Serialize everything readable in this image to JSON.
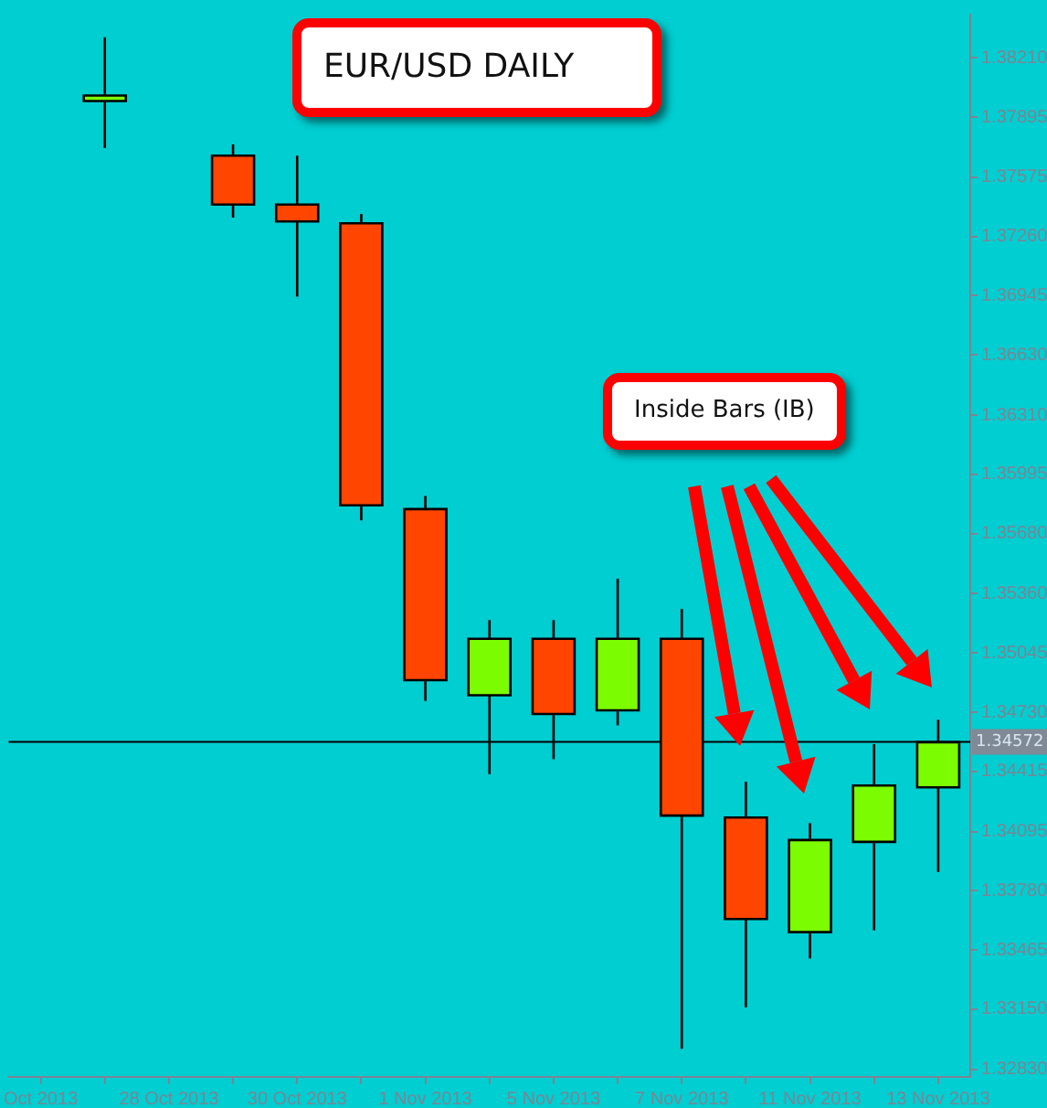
{
  "chart_data": {
    "type": "candlestick",
    "title": "EUR/USD DAILY",
    "annotations": [
      "Inside Bars (IB)"
    ],
    "categories": [
      "Oct 2013",
      null,
      "28 Oct 2013",
      null,
      "30 Oct 2013",
      null,
      "1 Nov 2013",
      null,
      "5 Nov 2013",
      null,
      "7 Nov 2013",
      null,
      "11 Nov 2013",
      null,
      "13 Nov 2013"
    ],
    "ohlc": [
      null,
      [
        1.38,
        1.3832,
        1.3773,
        1.3801
      ],
      null,
      [
        1.3769,
        1.3775,
        1.3736,
        1.3743
      ],
      [
        1.3743,
        1.3769,
        1.3694,
        1.3734
      ],
      [
        1.3733,
        1.3738,
        1.3575,
        1.3583
      ],
      [
        1.3581,
        1.3588,
        1.3479,
        1.349
      ],
      [
        1.3482,
        1.3522,
        1.344,
        1.3512
      ],
      [
        1.3512,
        1.3522,
        1.3448,
        1.3472
      ],
      [
        1.3474,
        1.3544,
        1.3466,
        1.3512
      ],
      [
        1.3512,
        1.3528,
        1.3294,
        1.3418
      ],
      [
        1.3417,
        1.3436,
        1.3316,
        1.3363
      ],
      [
        1.3356,
        1.3414,
        1.3342,
        1.3405
      ],
      [
        1.3404,
        1.3456,
        1.3357,
        1.3434
      ],
      [
        1.3433,
        1.3469,
        1.3388,
        1.3457
      ]
    ],
    "colors": [
      null,
      "#7cfc00",
      null,
      "#ff4500",
      "#ff4500",
      "#ff4500",
      "#ff4500",
      "#7cfc00",
      "#ff4500",
      "#7cfc00",
      "#ff4500",
      "#ff4500",
      "#7cfc00",
      "#7cfc00",
      "#7cfc00"
    ],
    "ylim": [
      1.3279,
      1.3844
    ],
    "yticks": [
      {
        "value": 1.3821,
        "label": "1.38210"
      },
      {
        "value": 1.37895,
        "label": "1.37895"
      },
      {
        "value": 1.37575,
        "label": "1.37575"
      },
      {
        "value": 1.3726,
        "label": "1.37260"
      },
      {
        "value": 1.36945,
        "label": "1.36945"
      },
      {
        "value": 1.3663,
        "label": "1.36630"
      },
      {
        "value": 1.3631,
        "label": "1.36310"
      },
      {
        "value": 1.35995,
        "label": "1.35995"
      },
      {
        "value": 1.3568,
        "label": "1.35680"
      },
      {
        "value": 1.3536,
        "label": "1.35360"
      },
      {
        "value": 1.35045,
        "label": "1.35045"
      },
      {
        "value": 1.3473,
        "label": "1.34730"
      },
      {
        "value": 1.34415,
        "label": "1.34415"
      },
      {
        "value": 1.34095,
        "label": "1.34095"
      },
      {
        "value": 1.3378,
        "label": "1.33780"
      },
      {
        "value": 1.33465,
        "label": "1.33465"
      },
      {
        "value": 1.3315,
        "label": "1.33150"
      },
      {
        "value": 1.3283,
        "label": "1.32830"
      }
    ],
    "ref_lines": [
      {
        "axis": "y",
        "value": 1.34572,
        "label": "1.34572",
        "color": "#000000"
      }
    ],
    "grid": false,
    "legend": false
  }
}
